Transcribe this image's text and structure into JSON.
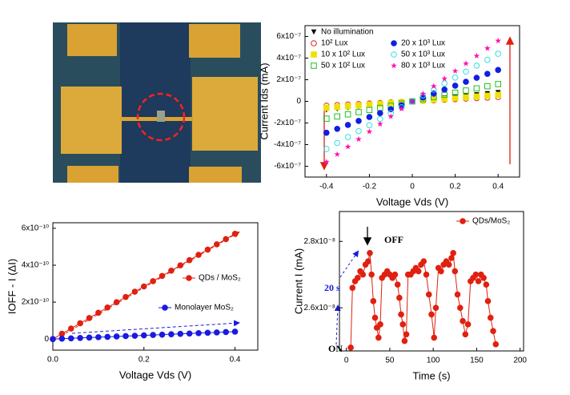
{
  "chart_data": [
    {
      "type": "scatter",
      "xlabel": "Voltage Vds (V)",
      "ylabel": "Current Ids (mA)",
      "x": [
        -0.4,
        -0.35,
        -0.3,
        -0.25,
        -0.2,
        -0.15,
        -0.1,
        -0.05,
        0,
        0.05,
        0.1,
        0.15,
        0.2,
        0.25,
        0.3,
        0.35,
        0.4
      ],
      "xlim": [
        -0.5,
        0.5
      ],
      "xticks": [
        -0.4,
        -0.2,
        0,
        0.2,
        0.4
      ],
      "ylim": [
        -7e-07,
        7e-07
      ],
      "yticks": [
        {
          "value": 6e-07,
          "label": "6x10⁻⁷"
        },
        {
          "value": 4e-07,
          "label": "4x10⁻⁷"
        },
        {
          "value": 2e-07,
          "label": "2x10⁻⁷"
        },
        0,
        {
          "value": -2e-07,
          "label": "-2x10⁻⁷"
        },
        {
          "value": -4e-07,
          "label": "-4x10⁻⁷"
        },
        {
          "value": -6e-07,
          "label": "-6x10⁻⁷"
        }
      ],
      "series": [
        {
          "name": "No illumination",
          "color": "#000000",
          "marker": "triangle-down",
          "values": [
            -8e-08,
            -7e-08,
            -6e-08,
            -5e-08,
            -4e-08,
            -3e-08,
            -2e-08,
            -1e-08,
            0,
            1e-08,
            2e-08,
            3e-08,
            4e-08,
            5e-08,
            6e-08,
            7e-08,
            8e-08
          ]
        },
        {
          "name": "10² Lux",
          "color": "#e02010",
          "marker": "circle-open",
          "values": [
            -4e-08,
            -3.5e-08,
            -3e-08,
            -2.5e-08,
            -2e-08,
            -1.5e-08,
            -1e-08,
            -5e-09,
            0,
            5e-09,
            1e-08,
            1.5e-08,
            2e-08,
            2.5e-08,
            3e-08,
            3.5e-08,
            4e-08
          ]
        },
        {
          "name": "10 x 10² Lux",
          "color": "#f0e000",
          "marker": "square",
          "values": [
            -6e-08,
            -5.25e-08,
            -4.5e-08,
            -3.75e-08,
            -3e-08,
            -2.25e-08,
            -1.5e-08,
            -7.5e-09,
            0,
            7.5e-09,
            1.5e-08,
            2.25e-08,
            3e-08,
            3.75e-08,
            4.5e-08,
            5.25e-08,
            6e-08
          ]
        },
        {
          "name": "50 x 10² Lux",
          "color": "#20c020",
          "marker": "square-open",
          "values": [
            -1.6e-07,
            -1.4e-07,
            -1.2e-07,
            -1e-07,
            -8e-08,
            -6e-08,
            -4e-08,
            -2e-08,
            0,
            2e-08,
            4e-08,
            6e-08,
            8e-08,
            1e-07,
            1.2e-07,
            1.4e-07,
            1.6e-07
          ]
        },
        {
          "name": "20 x 10³ Lux",
          "color": "#1020e0",
          "marker": "circle",
          "values": [
            -2.9e-07,
            -2.54e-07,
            -2.18e-07,
            -1.81e-07,
            -1.45e-07,
            -1.09e-07,
            -7.3e-08,
            -3.6e-08,
            0,
            3.6e-08,
            7.3e-08,
            1.09e-07,
            1.45e-07,
            1.81e-07,
            2.18e-07,
            2.54e-07,
            2.9e-07
          ]
        },
        {
          "name": "50 x 10³ Lux",
          "color": "#30e0e0",
          "marker": "circle-open",
          "values": [
            -4.4e-07,
            -3.85e-07,
            -3.3e-07,
            -2.75e-07,
            -2.2e-07,
            -1.65e-07,
            -1.1e-07,
            -5.5e-08,
            0,
            5.5e-08,
            1.1e-07,
            1.65e-07,
            2.2e-07,
            2.75e-07,
            3.3e-07,
            3.85e-07,
            4.4e-07
          ]
        },
        {
          "name": "80 x 10³ Lux",
          "color": "#ff10b0",
          "marker": "star",
          "values": [
            -5.6e-07,
            -4.9e-07,
            -4.2e-07,
            -3.5e-07,
            -2.8e-07,
            -2.1e-07,
            -1.4e-07,
            -7e-08,
            0,
            7e-08,
            1.4e-07,
            2.1e-07,
            2.8e-07,
            3.5e-07,
            4.2e-07,
            4.9e-07,
            5.6e-07
          ]
        }
      ]
    },
    {
      "type": "line",
      "xlabel": "Voltage Vds (V)",
      "ylabel": "IOFF - I (ΔI)",
      "x": [
        0,
        0.02,
        0.04,
        0.06,
        0.08,
        0.1,
        0.12,
        0.14,
        0.16,
        0.18,
        0.2,
        0.22,
        0.24,
        0.26,
        0.28,
        0.3,
        0.32,
        0.34,
        0.36,
        0.38,
        0.4
      ],
      "xlim": [
        0,
        0.45
      ],
      "xticks": [
        {
          "value": 0,
          "label": "0.0"
        },
        0.2,
        0.4
      ],
      "ylim": [
        -6e-11,
        6.3e-10
      ],
      "yticks": [
        0,
        {
          "value": 2e-10,
          "label": "2x10⁻¹⁰"
        },
        {
          "value": 4e-10,
          "label": "4x10⁻¹⁰"
        },
        {
          "value": 6e-10,
          "label": "6x10⁻¹⁰"
        }
      ],
      "series": [
        {
          "name": "QDs / MoS₂",
          "color": "#e02010",
          "marker": "circle",
          "values": [
            0,
            2.85e-11,
            5.7e-11,
            8.55e-11,
            1.14e-10,
            1.425e-10,
            1.71e-10,
            1.995e-10,
            2.28e-10,
            2.565e-10,
            2.85e-10,
            3.135e-10,
            3.42e-10,
            3.705e-10,
            3.99e-10,
            4.275e-10,
            4.56e-10,
            4.845e-10,
            5.13e-10,
            5.415e-10,
            5.7e-10
          ]
        },
        {
          "name": "Monolayer MoS₂",
          "color": "#1a1ae0",
          "marker": "circle",
          "values": [
            0,
            2e-12,
            4e-12,
            6e-12,
            8e-12,
            1e-11,
            1.2e-11,
            1.4e-11,
            1.6e-11,
            1.8e-11,
            2e-11,
            2.2e-11,
            2.4e-11,
            2.6e-11,
            2.8e-11,
            3e-11,
            3.2e-11,
            3.4e-11,
            3.6e-11,
            3.8e-11,
            4e-11
          ]
        }
      ]
    },
    {
      "type": "line",
      "xlabel": "Time (s)",
      "ylabel": "Current I (mA)",
      "x": [
        5,
        7,
        10,
        13,
        16,
        19,
        22,
        25,
        27,
        29,
        31,
        33,
        35,
        37,
        39,
        41,
        44,
        47,
        50,
        53,
        56,
        59,
        61,
        63,
        65,
        67,
        69,
        71,
        74,
        77,
        80,
        83,
        86,
        89,
        92,
        95,
        98,
        101,
        103,
        106,
        109,
        112,
        115,
        118,
        121,
        123,
        125,
        128,
        131,
        134,
        137,
        140,
        143,
        146,
        149,
        152,
        155,
        158,
        161,
        163,
        166,
        169,
        172
      ],
      "xlim": [
        -8,
        204
      ],
      "xticks": [
        0,
        50,
        100,
        150,
        200
      ],
      "ylim": [
        2.47e-08,
        2.89e-08
      ],
      "yticks": [
        {
          "value": 2.6e-08,
          "label": "2.6x10⁻⁸"
        },
        {
          "value": 2.8e-08,
          "label": "2.8x10⁻⁸"
        }
      ],
      "series": [
        {
          "name": "QDs/MoS₂",
          "color": "#e02010",
          "marker": "circle",
          "values": [
            2.48e-08,
            2.66e-08,
            2.68e-08,
            2.69e-08,
            2.71e-08,
            2.7e-08,
            2.73e-08,
            2.74e-08,
            2.765e-08,
            2.7e-08,
            2.62e-08,
            2.57e-08,
            2.54e-08,
            2.51e-08,
            2.55e-08,
            2.69e-08,
            2.7e-08,
            2.71e-08,
            2.7e-08,
            2.69e-08,
            2.7e-08,
            2.67e-08,
            2.63e-08,
            2.58e-08,
            2.55e-08,
            2.5e-08,
            2.52e-08,
            2.7e-08,
            2.7e-08,
            2.71e-08,
            2.72e-08,
            2.71e-08,
            2.73e-08,
            2.74e-08,
            2.7e-08,
            2.64e-08,
            2.58e-08,
            2.51e-08,
            2.6e-08,
            2.72e-08,
            2.71e-08,
            2.73e-08,
            2.74e-08,
            2.73e-08,
            2.75e-08,
            2.765e-08,
            2.71e-08,
            2.64e-08,
            2.6e-08,
            2.56e-08,
            2.52e-08,
            2.55e-08,
            2.68e-08,
            2.69e-08,
            2.7e-08,
            2.68e-08,
            2.7e-08,
            2.69e-08,
            2.67e-08,
            2.62e-08,
            2.57e-08,
            2.53e-08,
            2.49e-08
          ]
        }
      ],
      "annotations": [
        "OFF",
        "ON",
        "20 s"
      ]
    }
  ]
}
